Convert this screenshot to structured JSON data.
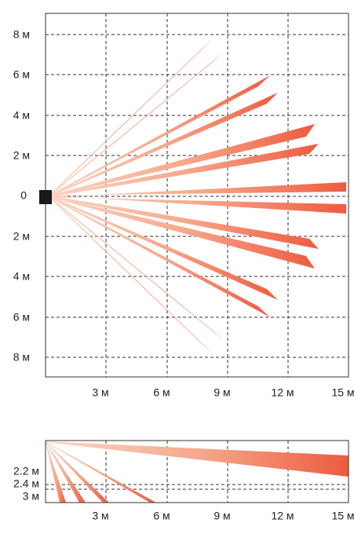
{
  "top_view": {
    "y_labels": [
      "8 м",
      "6 м",
      "4 м",
      "2 м",
      "0",
      "2 м",
      "4 м",
      "6 м",
      "8 м"
    ],
    "x_labels": [
      "3 м",
      "6 м",
      "9 м",
      "12 м",
      "15 м"
    ]
  },
  "side_view": {
    "height_labels": [
      "2.2 м",
      "2.4 м",
      "3 м"
    ],
    "x_labels": [
      "3 м",
      "6 м",
      "9 м",
      "12 м",
      "15 м"
    ]
  }
}
